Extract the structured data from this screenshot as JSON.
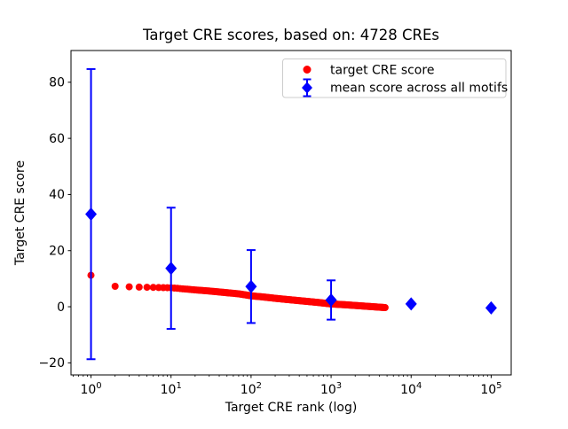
{
  "chart_data": {
    "type": "scatter",
    "title": "Target CRE scores, based on: 4728 CREs",
    "xlabel": "Target CRE rank (log)",
    "ylabel": "Target CRE score",
    "x_scale": "log",
    "xlim": [
      0.5623,
      178000
    ],
    "ylim": [
      -24.3,
      91.3
    ],
    "x_ticks": [
      1,
      10,
      100,
      1000,
      10000,
      100000
    ],
    "y_ticks": [
      -20,
      0,
      20,
      40,
      60,
      80
    ],
    "grid": false,
    "legend_position": "upper right",
    "colors": {
      "target": "#ff0000",
      "mean": "#0000ff",
      "axis": "#000000",
      "legend_border": "#cccccc",
      "background": "#ffffff"
    },
    "legend": [
      {
        "label": "target CRE score",
        "marker": "circle",
        "color": "#ff0000"
      },
      {
        "label": "mean score across all motifs",
        "marker": "diamond-errorbar",
        "color": "#0000ff"
      }
    ],
    "series": [
      {
        "name": "target CRE score",
        "type": "points",
        "color": "#ff0000",
        "max_rank": 4728,
        "anchors": [
          [
            1,
            11.2
          ],
          [
            2,
            7.3
          ],
          [
            3,
            7.1
          ],
          [
            4,
            7.0
          ],
          [
            5,
            6.95
          ],
          [
            7,
            6.85
          ],
          [
            10,
            6.75
          ],
          [
            15,
            6.3
          ],
          [
            20,
            6.0
          ],
          [
            30,
            5.6
          ],
          [
            50,
            5.0
          ],
          [
            70,
            4.6
          ],
          [
            100,
            3.9
          ],
          [
            150,
            3.4
          ],
          [
            200,
            3.0
          ],
          [
            300,
            2.5
          ],
          [
            500,
            1.9
          ],
          [
            700,
            1.5
          ],
          [
            1000,
            1.0
          ],
          [
            1500,
            0.7
          ],
          [
            2000,
            0.45
          ],
          [
            3000,
            0.1
          ],
          [
            4000,
            -0.15
          ],
          [
            4728,
            -0.3
          ]
        ]
      },
      {
        "name": "mean score across all motifs",
        "type": "diamonds-errorbars",
        "color": "#0000ff",
        "points": [
          {
            "x": 1,
            "y": 33.0,
            "err": 51.7
          },
          {
            "x": 10,
            "y": 13.7,
            "err": 21.6
          },
          {
            "x": 100,
            "y": 7.2,
            "err": 13.0
          },
          {
            "x": 1000,
            "y": 2.4,
            "err": 7.0
          },
          {
            "x": 10000,
            "y": 1.0,
            "err": 0.0
          },
          {
            "x": 100000,
            "y": -0.4,
            "err": 0.0
          }
        ]
      }
    ]
  }
}
